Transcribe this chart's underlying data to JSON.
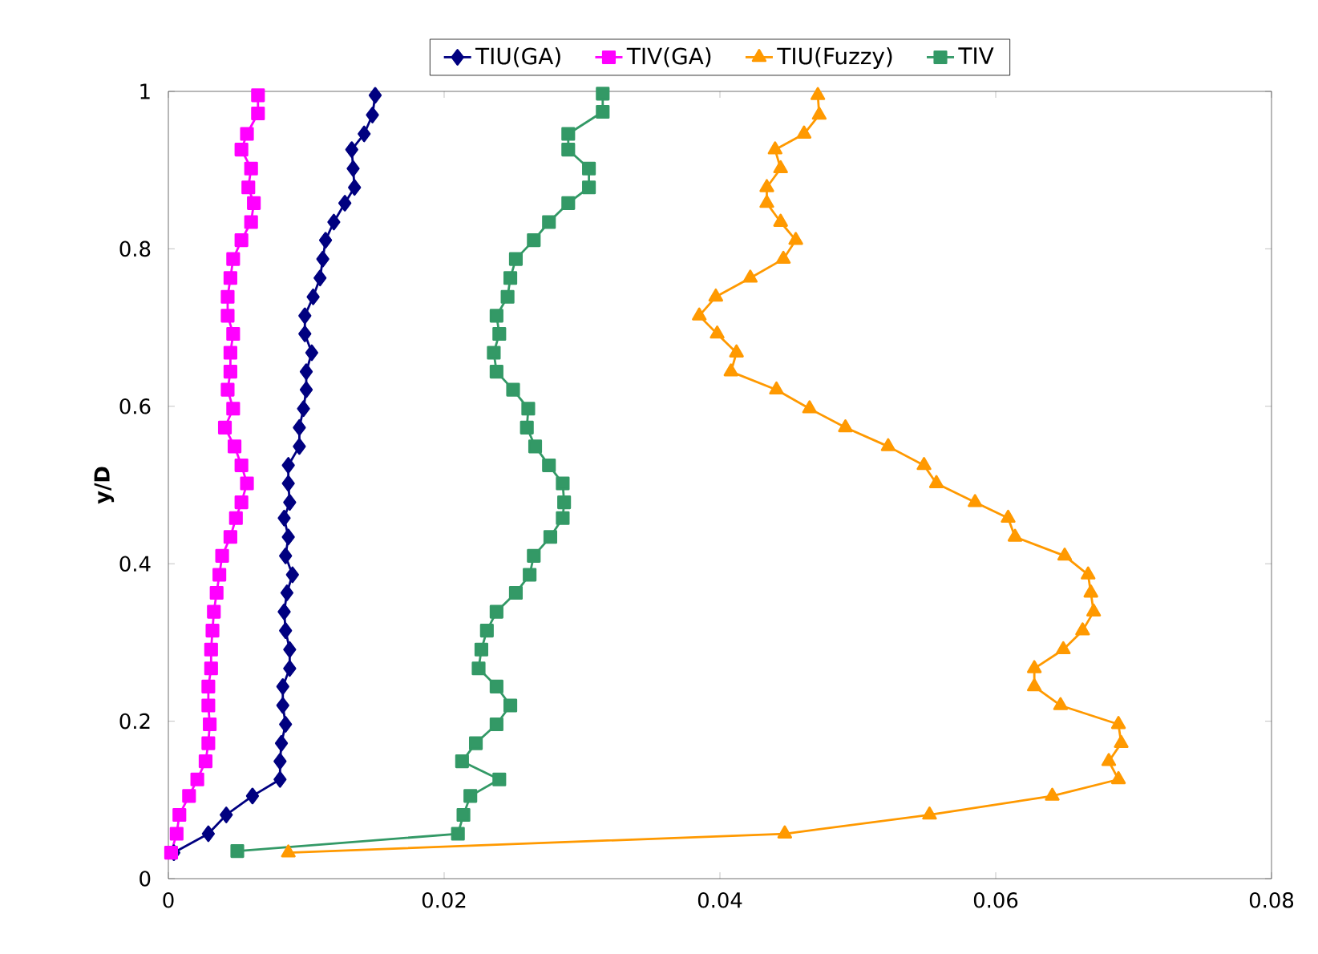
{
  "chart_data": {
    "type": "line",
    "ylabel": "y/D",
    "xlim": [
      0,
      0.08
    ],
    "ylim": [
      0,
      1
    ],
    "xticks": [
      0,
      0.02,
      0.04,
      0.06,
      0.08
    ],
    "yticks": [
      0,
      0.2,
      0.4,
      0.6,
      0.8,
      1
    ],
    "grid": false,
    "legend": "top",
    "series": [
      {
        "name": "TIU(GA)",
        "color": "#000080",
        "marker": "diamond",
        "x": [
          0.0004,
          0.0029,
          0.0042,
          0.0061,
          0.0081,
          0.0081,
          0.0082,
          0.0085,
          0.0083,
          0.0083,
          0.0088,
          0.0088,
          0.0085,
          0.0084,
          0.0086,
          0.009,
          0.0085,
          0.0087,
          0.0084,
          0.0088,
          0.0087,
          0.0087,
          0.0095,
          0.0095,
          0.0098,
          0.01,
          0.01,
          0.0104,
          0.0099,
          0.0099,
          0.0105,
          0.011,
          0.0112,
          0.0114,
          0.012,
          0.0128,
          0.0135,
          0.0134,
          0.0133,
          0.0142,
          0.0148,
          0.015
        ],
        "values": [
          0.033,
          0.057,
          0.081,
          0.105,
          0.126,
          0.149,
          0.172,
          0.196,
          0.22,
          0.244,
          0.267,
          0.291,
          0.315,
          0.339,
          0.363,
          0.386,
          0.41,
          0.434,
          0.458,
          0.478,
          0.502,
          0.525,
          0.549,
          0.573,
          0.597,
          0.621,
          0.644,
          0.668,
          0.692,
          0.715,
          0.739,
          0.763,
          0.787,
          0.811,
          0.834,
          0.858,
          0.878,
          0.902,
          0.926,
          0.946,
          0.97,
          0.995
        ]
      },
      {
        "name": "TIV(GA)",
        "color": "#ff00ff",
        "marker": "square",
        "x": [
          0.0002,
          0.0006,
          0.0008,
          0.0015,
          0.0021,
          0.0027,
          0.0029,
          0.003,
          0.0029,
          0.0029,
          0.0031,
          0.0031,
          0.0032,
          0.0033,
          0.0035,
          0.0037,
          0.0039,
          0.0045,
          0.0049,
          0.0053,
          0.0057,
          0.0053,
          0.0048,
          0.0041,
          0.0047,
          0.0043,
          0.0045,
          0.0045,
          0.0047,
          0.0043,
          0.0043,
          0.0045,
          0.0047,
          0.0053,
          0.006,
          0.0062,
          0.0058,
          0.006,
          0.0053,
          0.0057,
          0.0065,
          0.0065
        ],
        "values": [
          0.033,
          0.057,
          0.081,
          0.105,
          0.126,
          0.149,
          0.172,
          0.196,
          0.22,
          0.244,
          0.267,
          0.291,
          0.315,
          0.339,
          0.363,
          0.386,
          0.41,
          0.434,
          0.458,
          0.478,
          0.502,
          0.525,
          0.549,
          0.573,
          0.597,
          0.621,
          0.644,
          0.668,
          0.692,
          0.715,
          0.739,
          0.763,
          0.787,
          0.811,
          0.834,
          0.858,
          0.878,
          0.902,
          0.926,
          0.946,
          0.972,
          0.995
        ]
      },
      {
        "name": "TIU(Fuzzy)",
        "color": "#ff9900",
        "marker": "triangle",
        "x": [
          0.0087,
          0.0447,
          0.0552,
          0.0641,
          0.0689,
          0.0682,
          0.0691,
          0.0689,
          0.0647,
          0.0628,
          0.0628,
          0.0649,
          0.0663,
          0.0671,
          0.0669,
          0.0667,
          0.065,
          0.0614,
          0.0609,
          0.0585,
          0.0557,
          0.0548,
          0.0522,
          0.0491,
          0.0465,
          0.0441,
          0.0408,
          0.0412,
          0.0398,
          0.0385,
          0.0397,
          0.0422,
          0.0446,
          0.0455,
          0.0444,
          0.0434,
          0.0434,
          0.0444,
          0.044,
          0.0461,
          0.0472,
          0.0471
        ],
        "values": [
          0.033,
          0.057,
          0.081,
          0.105,
          0.126,
          0.149,
          0.172,
          0.196,
          0.22,
          0.244,
          0.267,
          0.291,
          0.315,
          0.339,
          0.363,
          0.386,
          0.41,
          0.434,
          0.458,
          0.478,
          0.502,
          0.525,
          0.549,
          0.573,
          0.597,
          0.621,
          0.644,
          0.668,
          0.692,
          0.715,
          0.739,
          0.763,
          0.787,
          0.811,
          0.834,
          0.858,
          0.878,
          0.902,
          0.926,
          0.946,
          0.97,
          0.995
        ]
      },
      {
        "name": "TIV",
        "color": "#339966",
        "marker": "square",
        "x": [
          0.005,
          0.021,
          0.0214,
          0.0219,
          0.024,
          0.0213,
          0.0223,
          0.0238,
          0.0248,
          0.0238,
          0.0225,
          0.0227,
          0.0231,
          0.0238,
          0.0252,
          0.0262,
          0.0265,
          0.0277,
          0.0286,
          0.0287,
          0.0286,
          0.0276,
          0.0266,
          0.026,
          0.0261,
          0.025,
          0.0238,
          0.0236,
          0.024,
          0.0238,
          0.0246,
          0.0248,
          0.0252,
          0.0265,
          0.0276,
          0.029,
          0.0305,
          0.0305,
          0.029,
          0.029,
          0.0315,
          0.0315
        ],
        "values": [
          0.035,
          0.057,
          0.081,
          0.105,
          0.126,
          0.149,
          0.172,
          0.196,
          0.22,
          0.244,
          0.267,
          0.291,
          0.315,
          0.339,
          0.363,
          0.386,
          0.41,
          0.434,
          0.458,
          0.478,
          0.502,
          0.525,
          0.549,
          0.573,
          0.597,
          0.621,
          0.644,
          0.668,
          0.692,
          0.715,
          0.739,
          0.763,
          0.787,
          0.811,
          0.834,
          0.858,
          0.878,
          0.902,
          0.926,
          0.946,
          0.974,
          0.997
        ]
      }
    ]
  }
}
